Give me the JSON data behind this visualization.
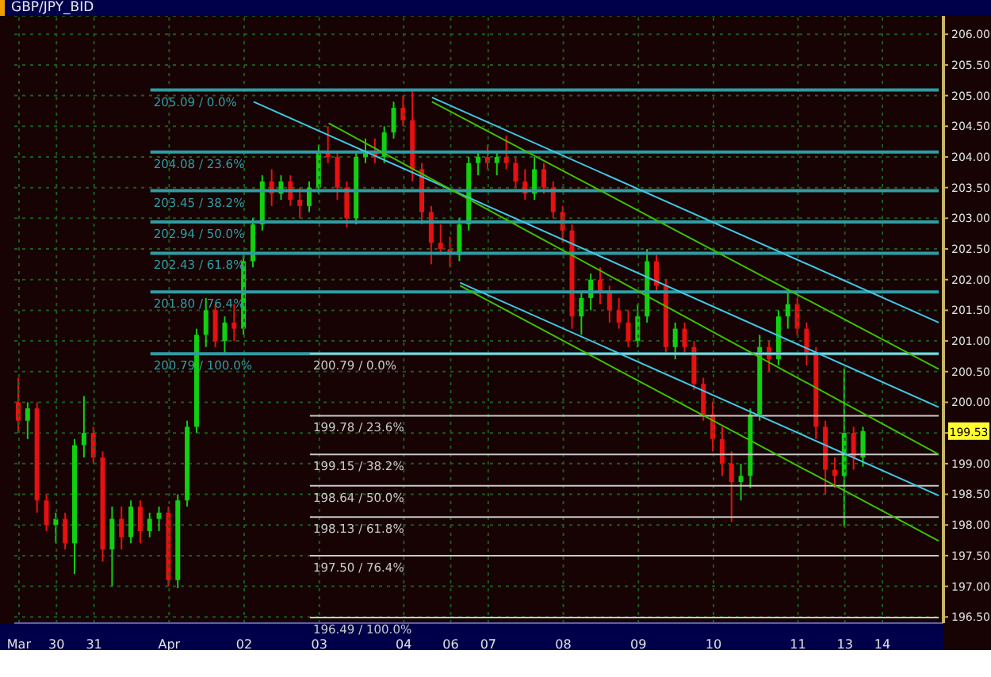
{
  "chart_data": {
    "type": "candlestick",
    "title": "GBP/JPY_BID",
    "categories": [
      "Mar",
      null,
      null,
      null,
      "30",
      null,
      null,
      null,
      "31",
      null,
      null,
      null,
      null,
      null,
      null,
      null,
      "Apr",
      null,
      null,
      null,
      null,
      null,
      null,
      null,
      "02",
      null,
      null,
      null,
      null,
      null,
      null,
      null,
      "03",
      null,
      null,
      null,
      null,
      null,
      null,
      null,
      null,
      "04",
      null,
      null,
      null,
      null,
      "06",
      null,
      null,
      null,
      "07",
      null,
      null,
      null,
      null,
      null,
      null,
      null,
      "08",
      null,
      null,
      null,
      null,
      null,
      null,
      null,
      "09",
      null,
      null,
      null,
      null,
      null,
      null,
      null,
      "10",
      null,
      null,
      null,
      null,
      null,
      null,
      null,
      null,
      "11",
      null,
      null,
      null,
      null,
      "13",
      null,
      null,
      null,
      "14",
      null,
      null,
      null,
      null,
      null,
      null
    ],
    "ohlc": [
      [
        200.0,
        200.4,
        199.5,
        199.7
      ],
      [
        199.7,
        200.0,
        199.4,
        199.9
      ],
      [
        199.9,
        200.0,
        198.2,
        198.4
      ],
      [
        198.4,
        198.5,
        197.9,
        198.0
      ],
      [
        198.0,
        198.2,
        197.7,
        198.1
      ],
      [
        198.1,
        198.2,
        197.6,
        197.7
      ],
      [
        197.7,
        199.4,
        197.2,
        199.3
      ],
      [
        199.3,
        200.1,
        199.1,
        199.5
      ],
      [
        199.5,
        199.6,
        199.0,
        199.1
      ],
      [
        199.1,
        199.2,
        197.4,
        197.6
      ],
      [
        197.6,
        198.3,
        197.0,
        198.1
      ],
      [
        198.1,
        198.3,
        197.6,
        197.8
      ],
      [
        197.8,
        198.4,
        197.7,
        198.3
      ],
      [
        198.3,
        198.4,
        197.7,
        197.9
      ],
      [
        197.9,
        198.2,
        197.8,
        198.1
      ],
      [
        198.1,
        198.3,
        197.9,
        198.2
      ],
      [
        198.2,
        198.3,
        197.0,
        197.1
      ],
      [
        197.1,
        198.5,
        196.97,
        198.4
      ],
      [
        198.4,
        199.7,
        198.3,
        199.6
      ],
      [
        199.6,
        201.2,
        199.5,
        201.1
      ],
      [
        201.1,
        201.7,
        200.9,
        201.5
      ],
      [
        201.5,
        201.6,
        200.9,
        201.0
      ],
      [
        201.0,
        201.4,
        200.8,
        201.3
      ],
      [
        201.3,
        201.6,
        201.0,
        201.2
      ],
      [
        201.2,
        202.4,
        201.1,
        202.3
      ],
      [
        202.3,
        203.0,
        202.2,
        202.9
      ],
      [
        202.9,
        203.7,
        202.8,
        203.6
      ],
      [
        203.6,
        203.8,
        203.2,
        203.4
      ],
      [
        203.4,
        203.7,
        203.3,
        203.6
      ],
      [
        203.6,
        203.7,
        203.2,
        203.3
      ],
      [
        203.3,
        203.5,
        203.0,
        203.2
      ],
      [
        203.2,
        203.6,
        203.1,
        203.5
      ],
      [
        203.5,
        204.2,
        203.4,
        204.1
      ],
      [
        204.1,
        204.5,
        203.9,
        204.0
      ],
      [
        204.0,
        204.1,
        203.3,
        203.5
      ],
      [
        203.5,
        203.6,
        202.85,
        203.0
      ],
      [
        203.0,
        204.1,
        202.9,
        204.0
      ],
      [
        204.0,
        204.3,
        203.9,
        204.1
      ],
      [
        204.1,
        204.3,
        203.9,
        204.0
      ],
      [
        204.0,
        204.5,
        203.9,
        204.4
      ],
      [
        204.4,
        204.9,
        204.3,
        204.8
      ],
      [
        204.8,
        205.0,
        204.5,
        204.6
      ],
      [
        204.6,
        205.09,
        203.6,
        203.8
      ],
      [
        203.8,
        203.9,
        202.9,
        203.1
      ],
      [
        203.1,
        203.2,
        202.25,
        202.6
      ],
      [
        202.6,
        202.9,
        202.4,
        202.5
      ],
      [
        202.5,
        202.7,
        202.2,
        202.4
      ],
      [
        202.4,
        203.0,
        202.3,
        202.9
      ],
      [
        202.9,
        204.0,
        202.8,
        203.9
      ],
      [
        203.9,
        204.1,
        203.7,
        204.0
      ],
      [
        204.0,
        204.2,
        203.8,
        203.9
      ],
      [
        203.9,
        204.1,
        203.7,
        204.0
      ],
      [
        204.0,
        204.35,
        203.8,
        203.9
      ],
      [
        203.9,
        204.0,
        203.5,
        203.6
      ],
      [
        203.6,
        203.8,
        203.3,
        203.4
      ],
      [
        203.4,
        204.0,
        203.3,
        203.8
      ],
      [
        203.8,
        203.9,
        203.4,
        203.5
      ],
      [
        203.5,
        203.6,
        203.0,
        203.1
      ],
      [
        203.1,
        203.2,
        202.6,
        202.8
      ],
      [
        202.8,
        202.9,
        201.2,
        201.4
      ],
      [
        201.4,
        201.8,
        201.1,
        201.7
      ],
      [
        201.7,
        202.1,
        201.5,
        202.0
      ],
      [
        202.0,
        202.2,
        201.6,
        201.8
      ],
      [
        201.8,
        201.9,
        201.3,
        201.5
      ],
      [
        201.5,
        201.7,
        201.2,
        201.3
      ],
      [
        201.3,
        201.5,
        200.9,
        201.0
      ],
      [
        201.0,
        201.6,
        200.9,
        201.4
      ],
      [
        201.4,
        202.5,
        201.3,
        202.3
      ],
      [
        202.3,
        202.4,
        201.8,
        201.9
      ],
      [
        201.9,
        202.0,
        200.8,
        200.9
      ],
      [
        200.9,
        201.3,
        200.7,
        201.2
      ],
      [
        201.2,
        201.3,
        200.8,
        200.9
      ],
      [
        200.9,
        201.0,
        200.2,
        200.3
      ],
      [
        200.3,
        200.4,
        199.7,
        199.8
      ],
      [
        199.8,
        200.0,
        199.2,
        199.4
      ],
      [
        199.4,
        199.6,
        198.8,
        199.0
      ],
      [
        199.0,
        199.2,
        198.05,
        198.7
      ],
      [
        198.7,
        199.0,
        198.4,
        198.8
      ],
      [
        198.8,
        199.9,
        198.6,
        199.8
      ],
      [
        199.8,
        201.1,
        199.7,
        200.9
      ],
      [
        200.9,
        201.0,
        200.5,
        200.7
      ],
      [
        200.7,
        201.5,
        200.6,
        201.4
      ],
      [
        201.4,
        201.85,
        201.2,
        201.6
      ],
      [
        201.6,
        201.7,
        201.1,
        201.2
      ],
      [
        201.2,
        201.3,
        200.6,
        200.8
      ],
      [
        200.8,
        200.9,
        199.4,
        199.6
      ],
      [
        199.6,
        199.7,
        198.5,
        198.9
      ],
      [
        198.9,
        199.1,
        198.6,
        198.8
      ],
      [
        198.8,
        200.55,
        197.97,
        199.5
      ],
      [
        199.5,
        199.6,
        198.9,
        199.1
      ],
      [
        199.1,
        199.6,
        198.95,
        199.53
      ],
      null,
      null,
      null,
      null,
      null,
      null,
      null,
      null
    ],
    "series": [
      {
        "type": "line",
        "color": "#40c8e8",
        "values": [
          null,
          null,
          null,
          null,
          null,
          null,
          null,
          null,
          null,
          null,
          null,
          null,
          null,
          null,
          null,
          null,
          null,
          null,
          null,
          null,
          null,
          null,
          null,
          null,
          null,
          null,
          null,
          null,
          null,
          null,
          null,
          null,
          null,
          null,
          null,
          null,
          null,
          null,
          null,
          null,
          null,
          null,
          null,
          null,
          204.97,
          null,
          null,
          null,
          null,
          null,
          null,
          null,
          null,
          null,
          null,
          null,
          null,
          null,
          null,
          null,
          null,
          null,
          null,
          null,
          null,
          null,
          null,
          null,
          null,
          null,
          null,
          null,
          null,
          null,
          null,
          null,
          null,
          null,
          null,
          null,
          null,
          null,
          null,
          null,
          null,
          null,
          null,
          null,
          null,
          null,
          null,
          null,
          null,
          null,
          null,
          null,
          null,
          null,
          201.3
        ]
      },
      {
        "type": "line",
        "color": "#40c000",
        "values": [
          null,
          null,
          null,
          null,
          null,
          null,
          null,
          null,
          null,
          null,
          null,
          null,
          null,
          null,
          null,
          null,
          null,
          null,
          null,
          null,
          null,
          null,
          null,
          null,
          null,
          null,
          null,
          null,
          null,
          null,
          null,
          null,
          null,
          null,
          null,
          null,
          null,
          null,
          null,
          null,
          null,
          null,
          null,
          null,
          204.9,
          null,
          null,
          null,
          null,
          null,
          null,
          null,
          null,
          null,
          null,
          null,
          null,
          null,
          null,
          null,
          null,
          null,
          null,
          null,
          null,
          null,
          null,
          null,
          null,
          null,
          null,
          null,
          null,
          null,
          null,
          null,
          null,
          null,
          null,
          null,
          null,
          null,
          null,
          null,
          null,
          null,
          null,
          null,
          null,
          null,
          null,
          null,
          null,
          null,
          null,
          null,
          null,
          null,
          200.54
        ]
      },
      {
        "type": "line",
        "color": "#40c8e8",
        "values": [
          null,
          null,
          null,
          null,
          null,
          null,
          null,
          null,
          null,
          null,
          null,
          null,
          null,
          null,
          null,
          null,
          null,
          null,
          null,
          null,
          null,
          null,
          null,
          null,
          null,
          204.9,
          null,
          null,
          null,
          null,
          null,
          null,
          null,
          null,
          null,
          null,
          null,
          null,
          null,
          null,
          null,
          null,
          null,
          null,
          null,
          null,
          null,
          null,
          null,
          null,
          null,
          null,
          null,
          null,
          null,
          null,
          null,
          null,
          null,
          null,
          null,
          null,
          null,
          null,
          null,
          null,
          null,
          null,
          null,
          null,
          null,
          null,
          null,
          null,
          null,
          null,
          null,
          null,
          null,
          null,
          null,
          null,
          null,
          null,
          null,
          null,
          null,
          null,
          null,
          null,
          null,
          null,
          null,
          null,
          null,
          null,
          null,
          null,
          199.92
        ]
      },
      {
        "type": "line",
        "color": "#40c000",
        "values": [
          null,
          null,
          null,
          null,
          null,
          null,
          null,
          null,
          null,
          null,
          null,
          null,
          null,
          null,
          null,
          null,
          null,
          null,
          null,
          null,
          null,
          null,
          null,
          null,
          null,
          null,
          null,
          null,
          null,
          null,
          null,
          null,
          null,
          204.55,
          null,
          null,
          null,
          null,
          null,
          null,
          null,
          null,
          null,
          null,
          null,
          null,
          null,
          null,
          null,
          null,
          null,
          null,
          null,
          null,
          null,
          null,
          null,
          null,
          null,
          null,
          null,
          null,
          null,
          null,
          null,
          null,
          null,
          null,
          null,
          null,
          null,
          null,
          null,
          null,
          null,
          null,
          null,
          null,
          null,
          null,
          null,
          null,
          null,
          null,
          null,
          null,
          null,
          null,
          null,
          null,
          null,
          null,
          null,
          null,
          null,
          null,
          null,
          null,
          199.15
        ]
      },
      {
        "type": "line",
        "color": "#40c8e8",
        "values": [
          null,
          null,
          null,
          null,
          null,
          null,
          null,
          null,
          null,
          null,
          null,
          null,
          null,
          null,
          null,
          null,
          null,
          null,
          null,
          null,
          null,
          null,
          null,
          null,
          null,
          null,
          null,
          null,
          null,
          null,
          null,
          null,
          null,
          null,
          null,
          null,
          null,
          null,
          null,
          null,
          null,
          null,
          null,
          null,
          null,
          null,
          null,
          201.95,
          null,
          null,
          null,
          null,
          null,
          null,
          null,
          null,
          null,
          null,
          null,
          null,
          null,
          null,
          null,
          null,
          null,
          null,
          null,
          null,
          null,
          null,
          null,
          null,
          null,
          null,
          null,
          null,
          null,
          null,
          null,
          null,
          null,
          null,
          null,
          null,
          null,
          null,
          null,
          null,
          null,
          null,
          null,
          null,
          null,
          null,
          null,
          null,
          null,
          null,
          198.48
        ]
      },
      {
        "type": "line",
        "color": "#40c000",
        "values": [
          null,
          null,
          null,
          null,
          null,
          null,
          null,
          null,
          null,
          null,
          null,
          null,
          null,
          null,
          null,
          null,
          null,
          null,
          null,
          null,
          null,
          null,
          null,
          null,
          null,
          null,
          null,
          null,
          null,
          null,
          null,
          null,
          null,
          null,
          null,
          null,
          null,
          null,
          null,
          null,
          null,
          null,
          null,
          null,
          null,
          null,
          null,
          201.9,
          null,
          null,
          null,
          null,
          null,
          null,
          null,
          null,
          null,
          null,
          null,
          null,
          null,
          null,
          null,
          null,
          null,
          null,
          null,
          null,
          null,
          null,
          null,
          null,
          null,
          null,
          null,
          null,
          null,
          null,
          null,
          null,
          null,
          null,
          null,
          null,
          null,
          null,
          null,
          null,
          null,
          null,
          null,
          null,
          null,
          null,
          null,
          null,
          null,
          null,
          197.74
        ]
      }
    ],
    "ylim": [
      196.4,
      206.3
    ],
    "yticks": [
      {
        "value": 196.5,
        "label": "196.50"
      },
      {
        "value": 197,
        "label": "197.00"
      },
      {
        "value": 197.5,
        "label": "197.50"
      },
      {
        "value": 198,
        "label": "198.00"
      },
      {
        "value": 198.5,
        "label": "198.50"
      },
      {
        "value": 199,
        "label": "199.00"
      },
      {
        "value": 199.5,
        "label": null
      },
      {
        "value": 200,
        "label": "200.00"
      },
      {
        "value": 200.5,
        "label": "200.50"
      },
      {
        "value": 201,
        "label": "201.00"
      },
      {
        "value": 201.5,
        "label": "201.50"
      },
      {
        "value": 202,
        "label": "202.00"
      },
      {
        "value": 202.5,
        "label": "202.50"
      },
      {
        "value": 203,
        "label": "203.00"
      },
      {
        "value": 203.5,
        "label": "203.50"
      },
      {
        "value": 204,
        "label": "204.00"
      },
      {
        "value": 204.5,
        "label": "204.50"
      },
      {
        "value": 205,
        "label": "205.00"
      },
      {
        "value": 205.5,
        "label": "205.50"
      },
      {
        "value": 206,
        "label": "206.00"
      }
    ],
    "ref_lines": [
      {
        "axis": "y",
        "value": 205.09,
        "label": "205.09 / 0.0%",
        "color": "#309ca4"
      },
      {
        "axis": "y",
        "value": 204.08,
        "label": "204.08 / 23.6%",
        "color": "#309ca4"
      },
      {
        "axis": "y",
        "value": 203.45,
        "label": "203.45 / 38.2%",
        "color": "#309ca4"
      },
      {
        "axis": "y",
        "value": 202.94,
        "label": "202.94 / 50.0%",
        "color": "#309ca4"
      },
      {
        "axis": "y",
        "value": 202.43,
        "label": "202.43 / 61.8%",
        "color": "#309ca4"
      },
      {
        "axis": "y",
        "value": 201.8,
        "label": "201.80 / 76.4%",
        "color": "#309ca4"
      },
      {
        "axis": "y",
        "value": 200.79,
        "label": "200.79 / 100.0%",
        "color": "#309ca4"
      },
      {
        "axis": "y",
        "value": 200.79,
        "label": "200.79 / 0.0%",
        "color": "#c8c8c8"
      },
      {
        "axis": "y",
        "value": 199.78,
        "label": "199.78 / 23.6%",
        "color": "#c8c8c8"
      },
      {
        "axis": "y",
        "value": 199.15,
        "label": "199.15 / 38.2%",
        "color": "#c8c8c8"
      },
      {
        "axis": "y",
        "value": 198.64,
        "label": "198.64 / 50.0%",
        "color": "#c8c8c8"
      },
      {
        "axis": "y",
        "value": 198.13,
        "label": "198.13 / 61.8%",
        "color": "#c8c8c8"
      },
      {
        "axis": "y",
        "value": 197.5,
        "label": "197.50 / 76.4%",
        "color": "#c8c8c8"
      },
      {
        "axis": "y",
        "value": 196.49,
        "label": "196.49 / 100.0%",
        "color": "#c8c8c8"
      }
    ],
    "annotations": [
      "199.53"
    ],
    "grid": true
  }
}
